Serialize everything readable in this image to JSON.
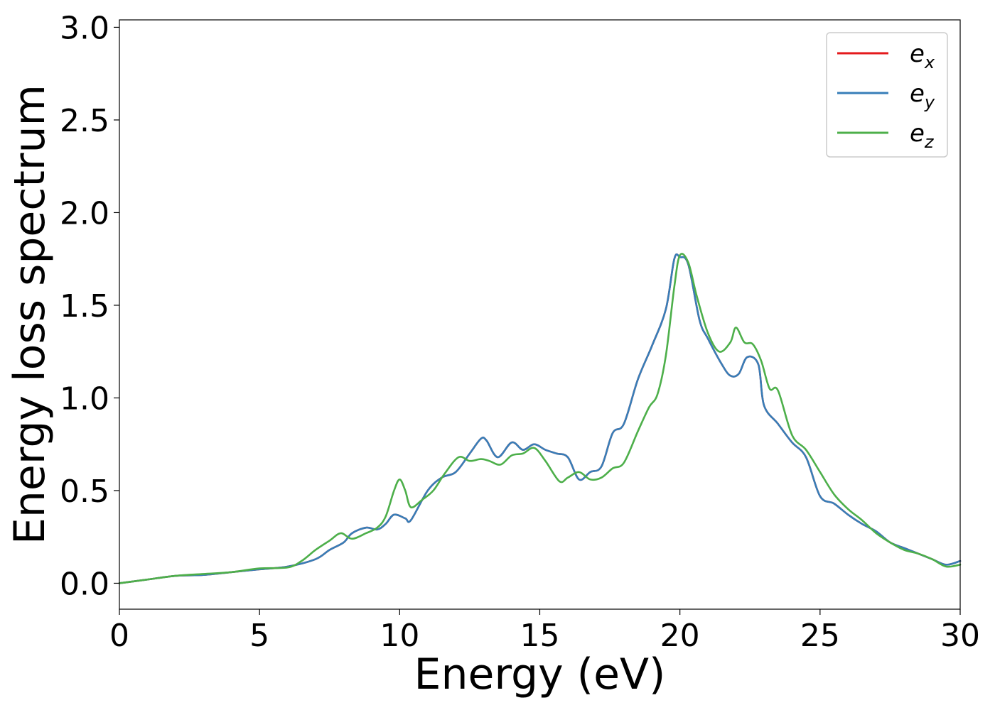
{
  "chart_data": {
    "type": "line",
    "title": "",
    "xlabel": "Energy (eV)",
    "ylabel": "Energy loss spectrum",
    "xlim": [
      0,
      30
    ],
    "ylim": [
      -0.14,
      3.04
    ],
    "xticks": [
      "0",
      "5",
      "10",
      "15",
      "20",
      "25",
      "30"
    ],
    "yticks": [
      "0.0",
      "0.5",
      "1.0",
      "1.5",
      "2.0",
      "2.5",
      "3.0"
    ],
    "grid": false,
    "legend_position": "top-right",
    "series": [
      {
        "name": "e_x",
        "label_main": "e",
        "label_sub": "x",
        "color": "#e41a1c",
        "x": [
          0,
          1,
          2,
          3,
          4,
          5,
          6,
          7,
          7.5,
          8,
          8.3,
          8.8,
          9.2,
          9.5,
          9.8,
          10.2,
          10.4,
          11,
          11.5,
          12,
          12.5,
          12.9,
          13.1,
          13.5,
          14,
          14.4,
          14.8,
          15.2,
          15.6,
          16,
          16.4,
          16.8,
          17.2,
          17.6,
          18,
          18.5,
          19,
          19.5,
          19.8,
          20,
          20.3,
          20.7,
          21,
          21.5,
          21.8,
          22.1,
          22.4,
          22.8,
          23,
          23.5,
          24,
          24.5,
          25,
          25.5,
          26,
          26.5,
          27,
          27.5,
          28,
          28.5,
          29,
          29.5,
          30
        ],
        "y": [
          0.0,
          0.02,
          0.04,
          0.045,
          0.06,
          0.075,
          0.09,
          0.13,
          0.18,
          0.22,
          0.27,
          0.3,
          0.29,
          0.32,
          0.37,
          0.35,
          0.34,
          0.5,
          0.57,
          0.6,
          0.7,
          0.78,
          0.77,
          0.68,
          0.76,
          0.72,
          0.75,
          0.72,
          0.7,
          0.68,
          0.56,
          0.6,
          0.63,
          0.81,
          0.86,
          1.1,
          1.28,
          1.48,
          1.75,
          1.76,
          1.72,
          1.42,
          1.32,
          1.18,
          1.12,
          1.13,
          1.22,
          1.18,
          0.96,
          0.86,
          0.76,
          0.68,
          0.47,
          0.43,
          0.37,
          0.32,
          0.28,
          0.22,
          0.19,
          0.16,
          0.13,
          0.1,
          0.12
        ]
      },
      {
        "name": "e_y",
        "label_main": "e",
        "label_sub": "y",
        "color": "#377eb8",
        "x": [
          0,
          1,
          2,
          3,
          4,
          5,
          6,
          7,
          7.5,
          8,
          8.3,
          8.8,
          9.2,
          9.5,
          9.8,
          10.2,
          10.4,
          11,
          11.5,
          12,
          12.5,
          12.9,
          13.1,
          13.5,
          14,
          14.4,
          14.8,
          15.2,
          15.6,
          16,
          16.4,
          16.8,
          17.2,
          17.6,
          18,
          18.5,
          19,
          19.5,
          19.8,
          20,
          20.3,
          20.7,
          21,
          21.5,
          21.8,
          22.1,
          22.4,
          22.8,
          23,
          23.5,
          24,
          24.5,
          25,
          25.5,
          26,
          26.5,
          27,
          27.5,
          28,
          28.5,
          29,
          29.5,
          30
        ],
        "y": [
          0.0,
          0.02,
          0.04,
          0.045,
          0.06,
          0.075,
          0.09,
          0.13,
          0.18,
          0.22,
          0.27,
          0.3,
          0.29,
          0.32,
          0.37,
          0.35,
          0.34,
          0.5,
          0.57,
          0.6,
          0.7,
          0.78,
          0.77,
          0.68,
          0.76,
          0.72,
          0.75,
          0.72,
          0.7,
          0.68,
          0.56,
          0.6,
          0.63,
          0.81,
          0.86,
          1.1,
          1.28,
          1.48,
          1.75,
          1.76,
          1.72,
          1.42,
          1.32,
          1.18,
          1.12,
          1.13,
          1.22,
          1.18,
          0.96,
          0.86,
          0.76,
          0.68,
          0.47,
          0.43,
          0.37,
          0.32,
          0.28,
          0.22,
          0.19,
          0.16,
          0.13,
          0.1,
          0.12
        ]
      },
      {
        "name": "e_z",
        "label_main": "e",
        "label_sub": "z",
        "color": "#4daf4a",
        "x": [
          0,
          1,
          2,
          3,
          4,
          5,
          6,
          6.5,
          7,
          7.5,
          7.9,
          8.3,
          8.8,
          9.2,
          9.5,
          9.8,
          10,
          10.2,
          10.4,
          10.8,
          11.2,
          11.6,
          12.1,
          12.5,
          12.9,
          13.2,
          13.6,
          14,
          14.4,
          14.8,
          15.2,
          15.7,
          16,
          16.4,
          16.8,
          17.2,
          17.6,
          18,
          18.5,
          18.9,
          19.2,
          19.5,
          19.8,
          20,
          20.3,
          20.6,
          21,
          21.4,
          21.8,
          22,
          22.3,
          22.6,
          22.9,
          23.2,
          23.5,
          24,
          24.5,
          25,
          25.5,
          26,
          26.5,
          27,
          27.5,
          28,
          28.5,
          29,
          29.5,
          30
        ],
        "y": [
          0.0,
          0.02,
          0.04,
          0.05,
          0.06,
          0.08,
          0.085,
          0.12,
          0.18,
          0.23,
          0.27,
          0.24,
          0.27,
          0.3,
          0.36,
          0.5,
          0.56,
          0.5,
          0.41,
          0.45,
          0.5,
          0.59,
          0.68,
          0.66,
          0.67,
          0.66,
          0.64,
          0.69,
          0.7,
          0.73,
          0.66,
          0.55,
          0.57,
          0.6,
          0.56,
          0.57,
          0.62,
          0.65,
          0.82,
          0.95,
          1.02,
          1.23,
          1.6,
          1.77,
          1.73,
          1.55,
          1.35,
          1.25,
          1.3,
          1.38,
          1.3,
          1.29,
          1.2,
          1.05,
          1.04,
          0.8,
          0.72,
          0.6,
          0.48,
          0.4,
          0.34,
          0.27,
          0.22,
          0.18,
          0.16,
          0.13,
          0.09,
          0.1
        ]
      }
    ]
  }
}
